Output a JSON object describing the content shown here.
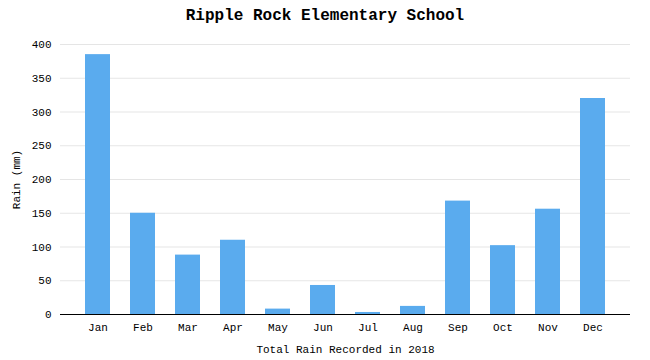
{
  "chart_data": {
    "type": "bar",
    "title": "Ripple Rock Elementary School",
    "xlabel": "Total Rain Recorded in 2018",
    "ylabel": "Rain (mm)",
    "categories": [
      "Jan",
      "Feb",
      "Mar",
      "Apr",
      "May",
      "Jun",
      "Jul",
      "Aug",
      "Sep",
      "Oct",
      "Nov",
      "Dec"
    ],
    "values": [
      385,
      150,
      88,
      110,
      8,
      43,
      3,
      12,
      168,
      102,
      156,
      320
    ],
    "color": "#5aabee",
    "ylim": [
      0,
      400
    ],
    "yticks": [
      0,
      50,
      100,
      150,
      200,
      250,
      300,
      350,
      400
    ],
    "grid": true
  }
}
